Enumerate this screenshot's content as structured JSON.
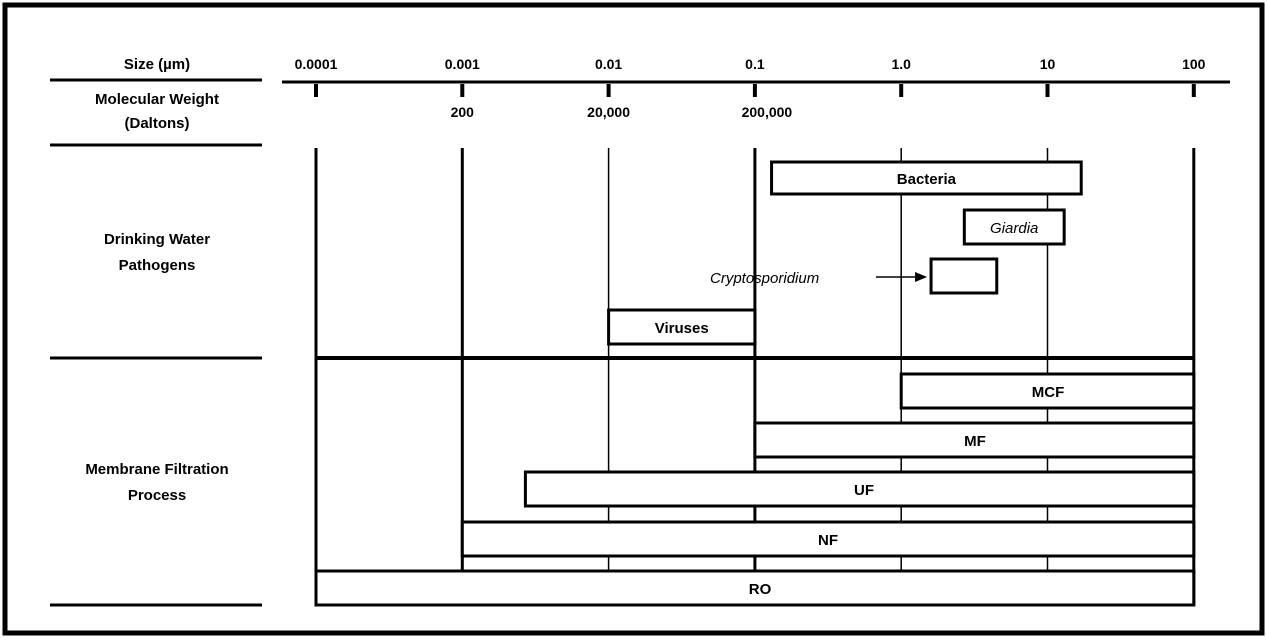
{
  "header": {
    "size_label": "Size (µm)",
    "mw_label_line1": "Molecular Weight",
    "mw_label_line2": "(Daltons)"
  },
  "axis": {
    "scale": "log",
    "size_ticks": [
      "0.0001",
      "0.001",
      "0.01",
      "0.1",
      "1.0",
      "10",
      "100"
    ],
    "mw_ticks": [
      "200",
      "20,000",
      "200,000"
    ]
  },
  "sections": {
    "pathogens": {
      "line1": "Drinking Water",
      "line2": "Pathogens"
    },
    "filtration": {
      "line1": "Membrane Filtration",
      "line2": "Process"
    }
  },
  "chart_data": {
    "type": "range-bar",
    "x_scale": "log",
    "x_unit": "µm",
    "pathogens": [
      {
        "label": "Bacteria",
        "min": 0.13,
        "max": 17,
        "italic": false
      },
      {
        "label": "Giardia",
        "min": 2.7,
        "max": 13,
        "italic": true
      },
      {
        "label": "Cryptosporidium",
        "min": 1.6,
        "max": 4.5,
        "italic": true,
        "callout": true
      },
      {
        "label": "Viruses",
        "min": 0.01,
        "max": 0.1,
        "italic": false
      }
    ],
    "processes": [
      {
        "label": "MCF",
        "min": 1.0,
        "max": 100
      },
      {
        "label": "MF",
        "min": 0.1,
        "max": 100
      },
      {
        "label": "UF",
        "min": 0.0027,
        "max": 100
      },
      {
        "label": "NF",
        "min": 0.001,
        "max": 100
      },
      {
        "label": "RO",
        "min": 0.0001,
        "max": 100
      }
    ]
  }
}
